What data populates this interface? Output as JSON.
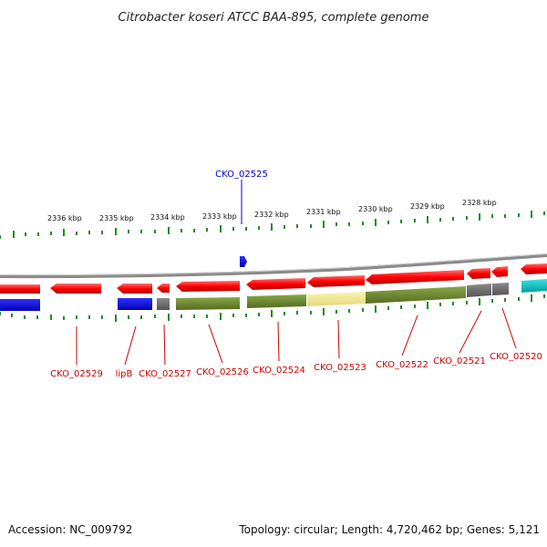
{
  "title": "Citrobacter koseri ATCC BAA-895, complete genome",
  "footer": {
    "accession": "Accession: NC_009792",
    "topology": "Topology: circular; Length: 4,720,462 bp; Genes: 5,121"
  },
  "colors": {
    "forward_gene": "#ff0000",
    "reverse_gene": "#ff0000",
    "blue_gene": "#0000dd",
    "olive_gene": "#6b8e23",
    "yellow_gene": "#f0e68c",
    "gray_gene": "#696969",
    "cyan_gene": "#00cccc",
    "tick_green": "#228b22",
    "backbone": "#909090",
    "top_label_color": "#0000cc",
    "bottom_label_color": "#cc0000"
  },
  "scale_labels": [
    "2336 kbp",
    "2335 kbp",
    "2334 kbp",
    "2333 kbp",
    "2332 kbp",
    "2331 kbp",
    "2330 kbp",
    "2329 kbp",
    "2328 kbp"
  ],
  "top_gene_labels": [
    "CKO_02525"
  ],
  "bottom_gene_labels": [
    "CKO_02529",
    "lipB",
    "CKO_02527",
    "CKO_02526",
    "CKO_02524",
    "CKO_02523",
    "CKO_02522",
    "CKO_02521",
    "CKO_02520"
  ]
}
